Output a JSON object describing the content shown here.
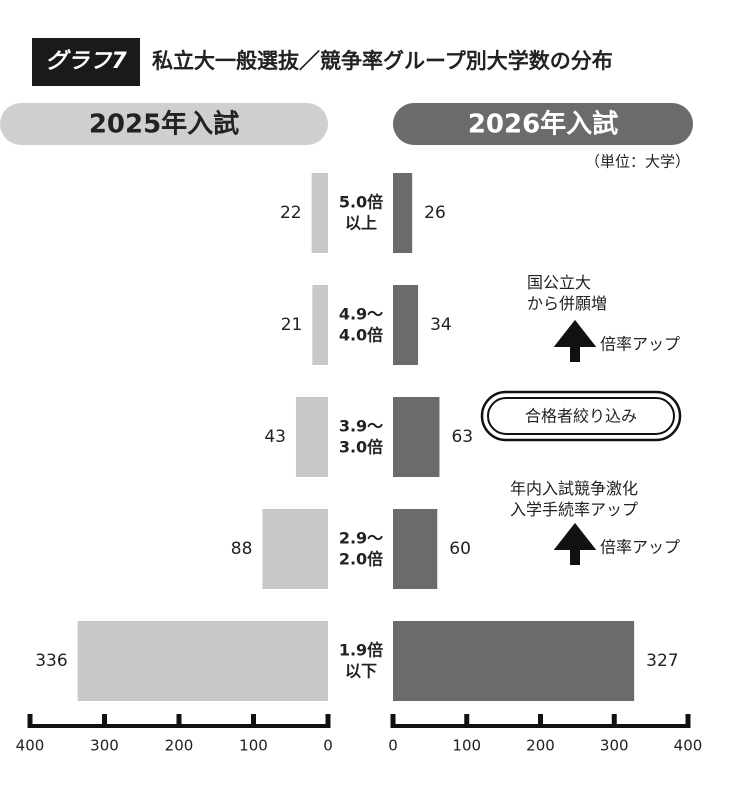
{
  "chart_data": {
    "type": "butterfly",
    "tag": "グラフ7",
    "title": "私立大一般選抜／競争率グループ別大学数の分布",
    "unit": "（単位：大学）",
    "categories": [
      "5.0倍\n以上",
      "4.9～\n4.0倍",
      "3.9～\n3.0倍",
      "2.9～\n2.0倍",
      "1.9倍\n以下"
    ],
    "series": [
      {
        "name": "2025年入試",
        "color": "#c8c8c8",
        "values": [
          22,
          21,
          43,
          88,
          336
        ]
      },
      {
        "name": "2026年入試",
        "color": "#6b6b6b",
        "values": [
          26,
          34,
          63,
          60,
          327
        ]
      }
    ],
    "xlim": [
      0,
      400
    ],
    "xticks": [
      0,
      100,
      200,
      300,
      400
    ],
    "annotations": [
      "国公立大\nから併願増",
      "倍率アップ",
      "合格者絞り込み",
      "年内入試競争激化\n入学手続率アップ",
      "倍率アップ"
    ]
  }
}
